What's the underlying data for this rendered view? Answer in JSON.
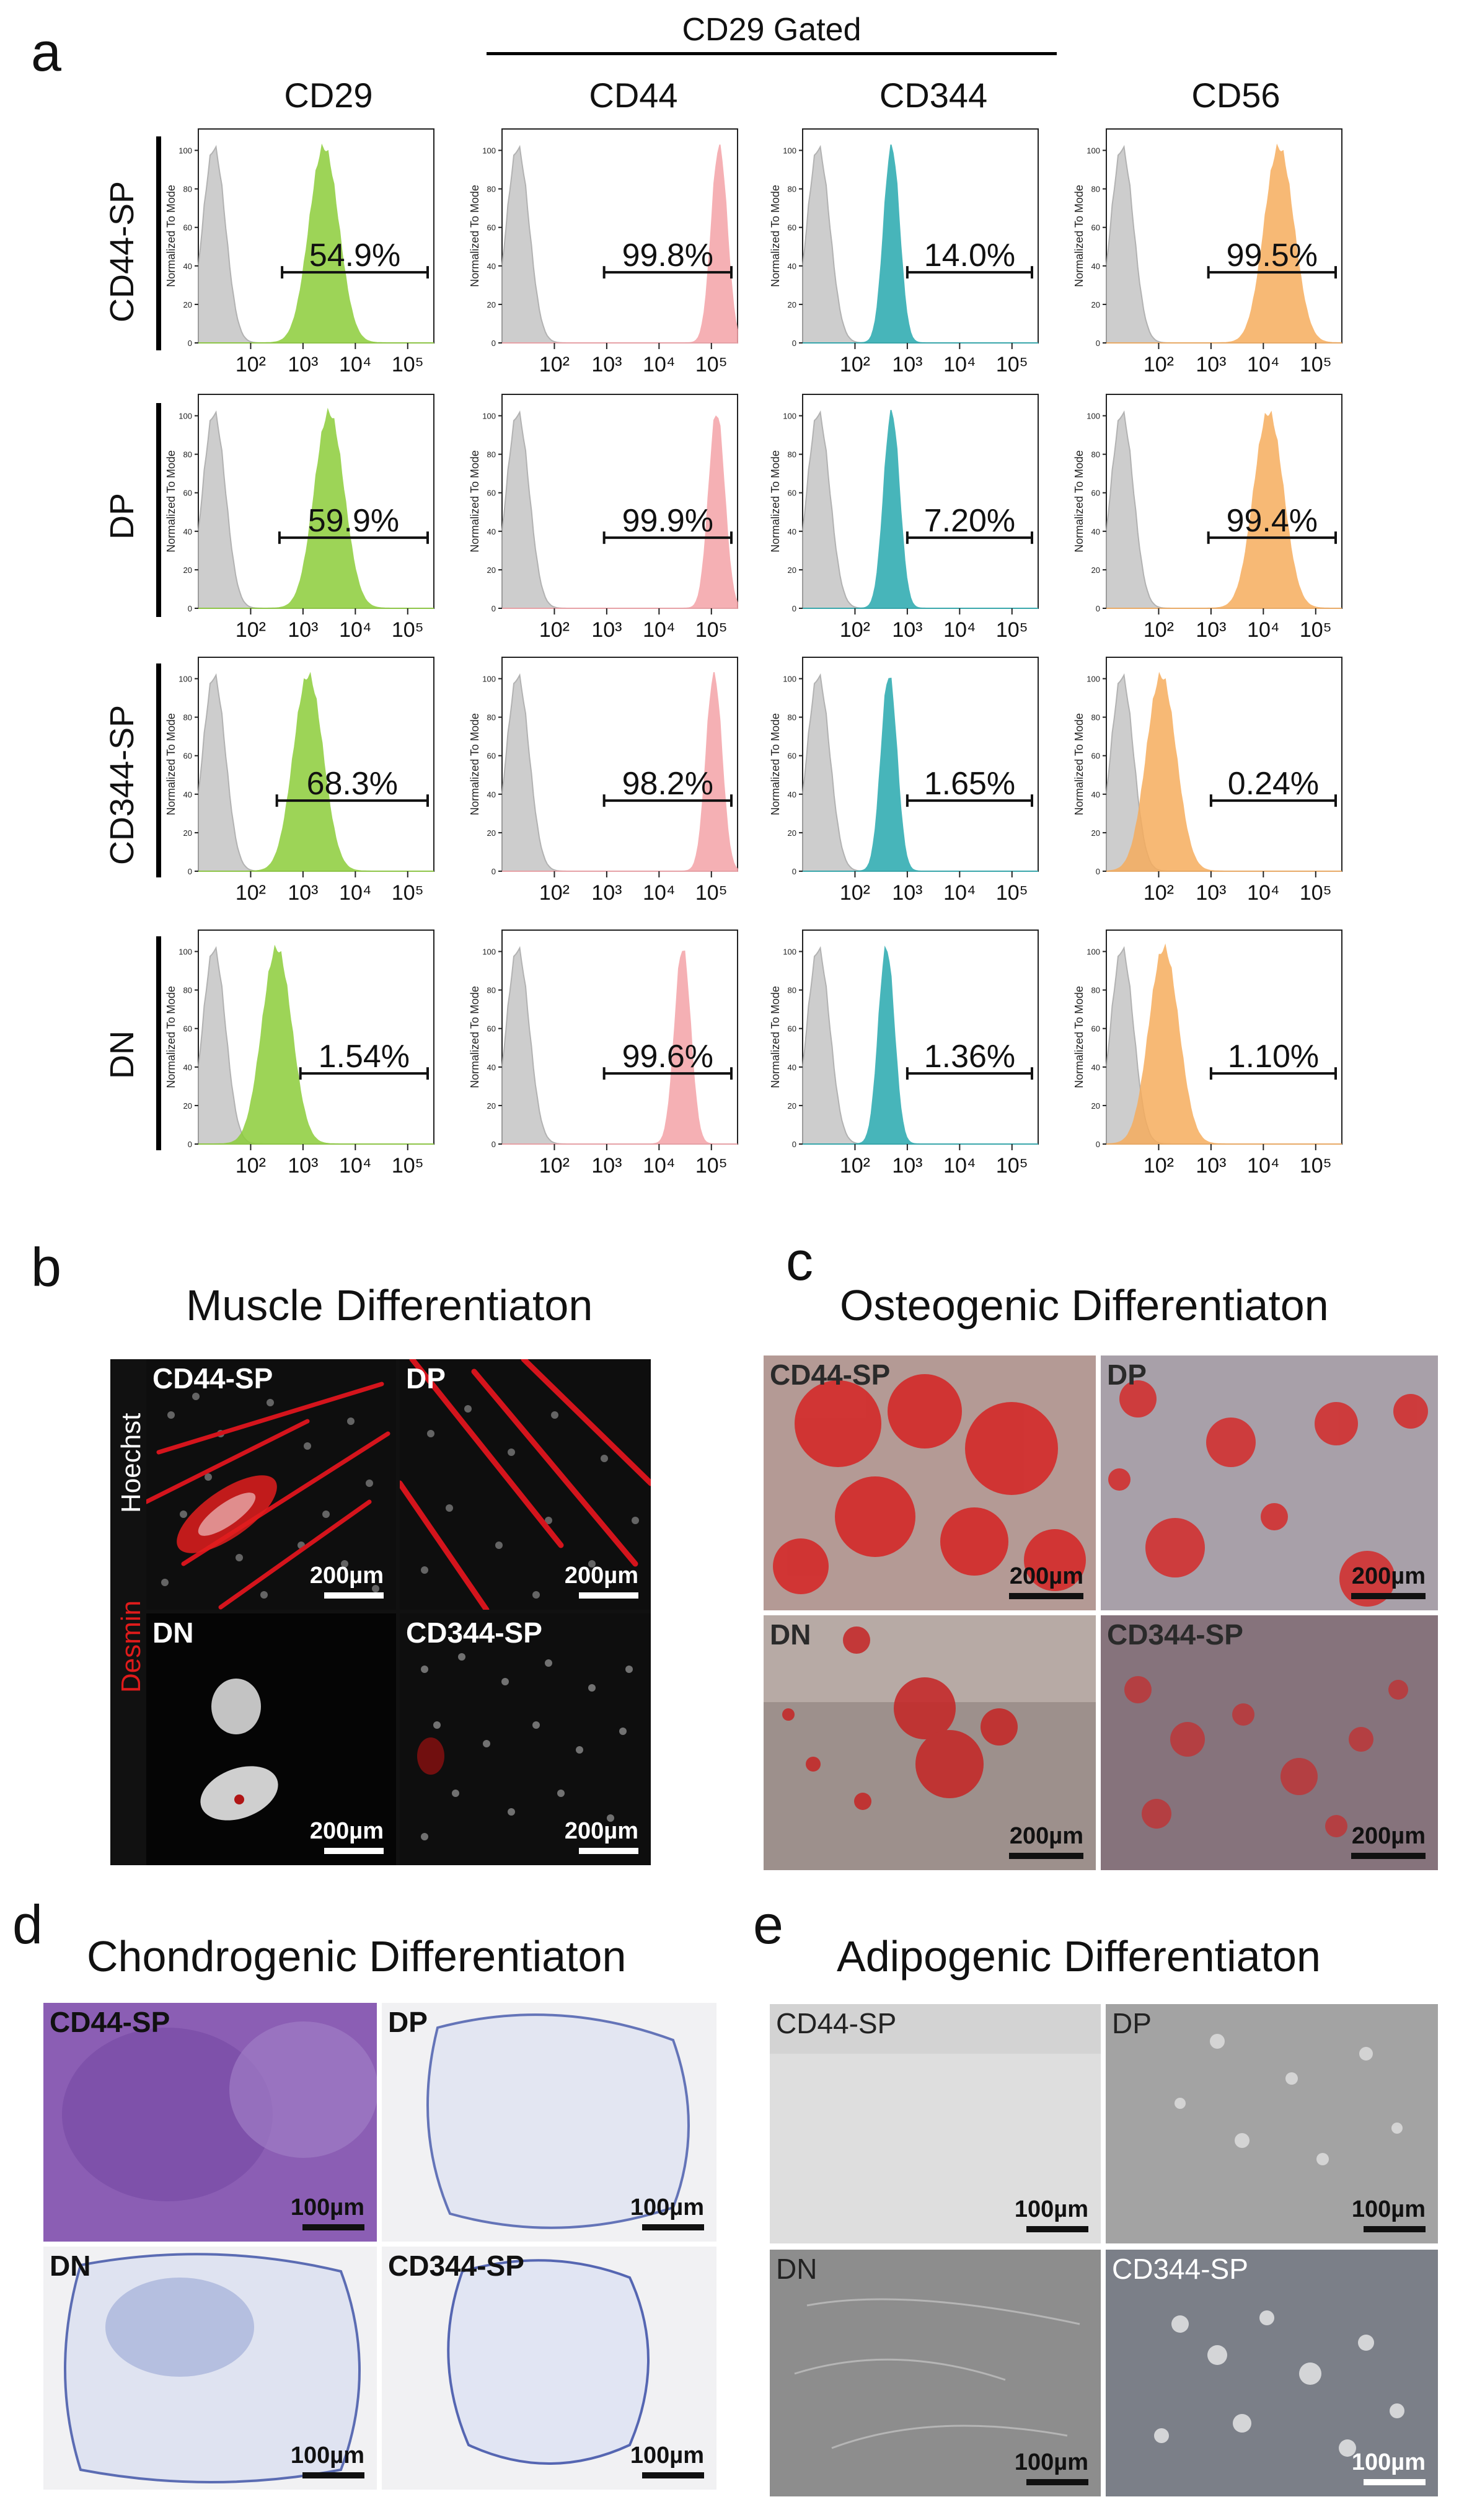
{
  "figure": {
    "panel_letters": {
      "a": "a",
      "b": "b",
      "c": "c",
      "d": "d",
      "e": "e"
    },
    "gated_header": "CD29 Gated",
    "columns": [
      "CD29",
      "CD44",
      "CD344",
      "CD56"
    ],
    "rows": [
      "CD44-SP",
      "DP",
      "CD344-SP",
      "DN"
    ],
    "y_axis_label": "Normalized To Mode",
    "y_ticks": [
      "0",
      "20",
      "40",
      "60",
      "80",
      "100"
    ],
    "x_ticks": [
      "10²",
      "10³",
      "10⁴",
      "10⁵"
    ],
    "colors": {
      "CD29": "#8ccd3a",
      "CD44": "#f4a3a8",
      "CD344": "#28a9ae",
      "CD56": "#f6ad5e",
      "control": "#c8c8c8"
    }
  },
  "chart_data": {
    "type": "histogram-grid",
    "title": "CD29 Gated",
    "ylabel": "Normalized To Mode",
    "xscale": "log",
    "xlim": [
      10,
      316228
    ],
    "ylim": [
      0,
      100
    ],
    "x_tick_values": [
      100,
      1000,
      10000,
      100000
    ],
    "control_peak_log10": 1.3,
    "gate_percent_labels": [
      [
        "54.9%",
        "99.8%",
        "14.0%",
        "99.5%"
      ],
      [
        "59.9%",
        "99.9%",
        "7.20%",
        "99.4%"
      ],
      [
        "68.3%",
        "98.2%",
        "1.65%",
        "0.24%"
      ],
      [
        "1.54%",
        "99.6%",
        "1.36%",
        "1.10%"
      ]
    ],
    "gate_percent_values": [
      [
        54.9,
        99.8,
        14.0,
        99.5
      ],
      [
        59.9,
        99.9,
        7.2,
        99.4
      ],
      [
        68.3,
        98.2,
        1.65,
        0.24
      ],
      [
        1.54,
        99.6,
        1.36,
        1.1
      ]
    ],
    "peak_log10": [
      [
        3.4,
        5.15,
        2.7,
        4.3
      ],
      [
        3.5,
        5.1,
        2.7,
        4.1
      ],
      [
        3.1,
        5.05,
        2.65,
        2.05
      ],
      [
        2.5,
        4.45,
        2.6,
        2.1
      ]
    ],
    "gate_start_log10": [
      [
        2.6,
        2.95,
        3.0,
        2.95
      ],
      [
        2.55,
        2.95,
        3.0,
        2.95
      ],
      [
        2.5,
        2.95,
        3.0,
        3.0
      ],
      [
        2.95,
        2.95,
        3.0,
        3.0
      ]
    ]
  },
  "panel_b": {
    "title": "Muscle Differentiaton",
    "stain_desmin": "Desmin",
    "stain_hoechst": "Hoechst",
    "tiles": [
      {
        "label": "CD44-SP",
        "scale": "200µm"
      },
      {
        "label": "DP",
        "scale": "200µm"
      },
      {
        "label": "DN",
        "scale": "200µm"
      },
      {
        "label": "CD344-SP",
        "scale": "200µm"
      }
    ]
  },
  "panel_c": {
    "title": "Osteogenic Differentiaton",
    "tiles": [
      {
        "label": "CD44-SP",
        "scale": "200µm"
      },
      {
        "label": "DP",
        "scale": "200µm"
      },
      {
        "label": "DN",
        "scale": "200µm"
      },
      {
        "label": "CD344-SP",
        "scale": "200µm"
      }
    ]
  },
  "panel_d": {
    "title": "Chondrogenic Differentiaton",
    "tiles": [
      {
        "label": "CD44-SP",
        "scale": "100µm"
      },
      {
        "label": "DP",
        "scale": "100µm"
      },
      {
        "label": "DN",
        "scale": "100µm"
      },
      {
        "label": "CD344-SP",
        "scale": "100µm"
      }
    ]
  },
  "panel_e": {
    "title": "Adipogenic Differentiaton",
    "tiles": [
      {
        "label": "CD44-SP",
        "scale": "100µm"
      },
      {
        "label": "DP",
        "scale": "100µm"
      },
      {
        "label": "DN",
        "scale": "100µm"
      },
      {
        "label": "CD344-SP",
        "scale": "100µm"
      }
    ]
  }
}
